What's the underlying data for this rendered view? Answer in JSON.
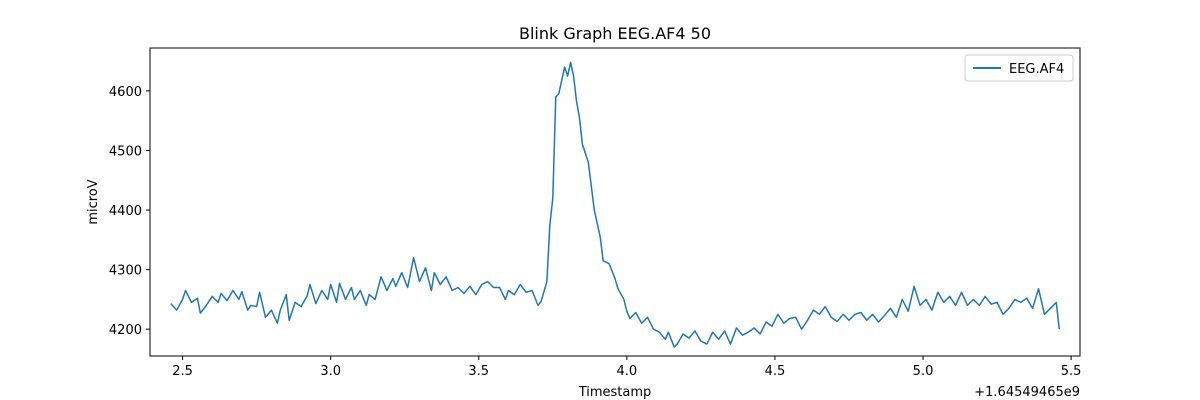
{
  "chart_data": {
    "type": "line",
    "title": "Blink Graph EEG.AF4 50",
    "xlabel": "Timestamp",
    "ylabel": "microV",
    "x_offset_text": "+1.64549465e9",
    "xlim": [
      2.39,
      5.53
    ],
    "ylim": [
      4155,
      4672
    ],
    "xticks": [
      2.5,
      3.0,
      3.5,
      4.0,
      4.5,
      5.0,
      5.5
    ],
    "xtick_labels": [
      "2.5",
      "3.0",
      "3.5",
      "4.0",
      "4.5",
      "5.0",
      "5.5"
    ],
    "yticks": [
      4200,
      4300,
      4400,
      4500,
      4600
    ],
    "ytick_labels": [
      "4200",
      "4300",
      "4400",
      "4500",
      "4600"
    ],
    "legend": {
      "placement": "top-right"
    },
    "grid": false,
    "series": [
      {
        "name": "EEG.AF4",
        "color": "#1f77b4",
        "points": [
          [
            2.46,
            4243
          ],
          [
            2.48,
            4232
          ],
          [
            2.5,
            4250
          ],
          [
            2.51,
            4265
          ],
          [
            2.53,
            4245
          ],
          [
            2.55,
            4252
          ],
          [
            2.56,
            4227
          ],
          [
            2.58,
            4240
          ],
          [
            2.6,
            4255
          ],
          [
            2.62,
            4245
          ],
          [
            2.63,
            4260
          ],
          [
            2.65,
            4248
          ],
          [
            2.67,
            4265
          ],
          [
            2.69,
            4250
          ],
          [
            2.7,
            4263
          ],
          [
            2.72,
            4232
          ],
          [
            2.73,
            4240
          ],
          [
            2.75,
            4238
          ],
          [
            2.76,
            4262
          ],
          [
            2.78,
            4220
          ],
          [
            2.8,
            4232
          ],
          [
            2.82,
            4210
          ],
          [
            2.83,
            4232
          ],
          [
            2.85,
            4258
          ],
          [
            2.86,
            4215
          ],
          [
            2.88,
            4245
          ],
          [
            2.9,
            4238
          ],
          [
            2.92,
            4255
          ],
          [
            2.93,
            4275
          ],
          [
            2.95,
            4243
          ],
          [
            2.97,
            4265
          ],
          [
            2.99,
            4250
          ],
          [
            3.0,
            4275
          ],
          [
            3.02,
            4245
          ],
          [
            3.03,
            4277
          ],
          [
            3.05,
            4250
          ],
          [
            3.07,
            4270
          ],
          [
            3.08,
            4250
          ],
          [
            3.1,
            4265
          ],
          [
            3.12,
            4240
          ],
          [
            3.13,
            4258
          ],
          [
            3.15,
            4250
          ],
          [
            3.17,
            4288
          ],
          [
            3.19,
            4265
          ],
          [
            3.21,
            4285
          ],
          [
            3.22,
            4272
          ],
          [
            3.24,
            4295
          ],
          [
            3.26,
            4270
          ],
          [
            3.28,
            4320
          ],
          [
            3.3,
            4280
          ],
          [
            3.32,
            4303
          ],
          [
            3.34,
            4265
          ],
          [
            3.35,
            4295
          ],
          [
            3.37,
            4275
          ],
          [
            3.39,
            4288
          ],
          [
            3.41,
            4265
          ],
          [
            3.43,
            4270
          ],
          [
            3.45,
            4260
          ],
          [
            3.47,
            4272
          ],
          [
            3.49,
            4258
          ],
          [
            3.51,
            4275
          ],
          [
            3.53,
            4280
          ],
          [
            3.55,
            4270
          ],
          [
            3.57,
            4270
          ],
          [
            3.59,
            4250
          ],
          [
            3.6,
            4265
          ],
          [
            3.62,
            4258
          ],
          [
            3.64,
            4275
          ],
          [
            3.66,
            4262
          ],
          [
            3.68,
            4265
          ],
          [
            3.7,
            4240
          ],
          [
            3.71,
            4246
          ],
          [
            3.73,
            4280
          ],
          [
            3.74,
            4375
          ],
          [
            3.75,
            4420
          ],
          [
            3.76,
            4590
          ],
          [
            3.77,
            4595
          ],
          [
            3.79,
            4640
          ],
          [
            3.8,
            4625
          ],
          [
            3.81,
            4648
          ],
          [
            3.82,
            4625
          ],
          [
            3.83,
            4583
          ],
          [
            3.84,
            4555
          ],
          [
            3.85,
            4510
          ],
          [
            3.87,
            4480
          ],
          [
            3.88,
            4440
          ],
          [
            3.89,
            4400
          ],
          [
            3.91,
            4355
          ],
          [
            3.92,
            4315
          ],
          [
            3.94,
            4310
          ],
          [
            3.96,
            4285
          ],
          [
            3.97,
            4268
          ],
          [
            3.99,
            4250
          ],
          [
            4.0,
            4230
          ],
          [
            4.01,
            4218
          ],
          [
            4.03,
            4228
          ],
          [
            4.05,
            4210
          ],
          [
            4.07,
            4220
          ],
          [
            4.09,
            4200
          ],
          [
            4.11,
            4195
          ],
          [
            4.13,
            4183
          ],
          [
            4.14,
            4195
          ],
          [
            4.16,
            4170
          ],
          [
            4.17,
            4175
          ],
          [
            4.19,
            4192
          ],
          [
            4.21,
            4185
          ],
          [
            4.23,
            4197
          ],
          [
            4.25,
            4180
          ],
          [
            4.27,
            4175
          ],
          [
            4.29,
            4195
          ],
          [
            4.31,
            4183
          ],
          [
            4.33,
            4197
          ],
          [
            4.35,
            4175
          ],
          [
            4.37,
            4202
          ],
          [
            4.39,
            4190
          ],
          [
            4.41,
            4195
          ],
          [
            4.43,
            4202
          ],
          [
            4.45,
            4192
          ],
          [
            4.47,
            4212
          ],
          [
            4.49,
            4205
          ],
          [
            4.51,
            4225
          ],
          [
            4.53,
            4210
          ],
          [
            4.55,
            4218
          ],
          [
            4.57,
            4220
          ],
          [
            4.59,
            4200
          ],
          [
            4.61,
            4215
          ],
          [
            4.63,
            4232
          ],
          [
            4.65,
            4225
          ],
          [
            4.67,
            4238
          ],
          [
            4.69,
            4220
          ],
          [
            4.71,
            4213
          ],
          [
            4.73,
            4225
          ],
          [
            4.75,
            4215
          ],
          [
            4.77,
            4225
          ],
          [
            4.79,
            4228
          ],
          [
            4.81,
            4215
          ],
          [
            4.83,
            4225
          ],
          [
            4.85,
            4212
          ],
          [
            4.87,
            4223
          ],
          [
            4.89,
            4235
          ],
          [
            4.91,
            4220
          ],
          [
            4.93,
            4250
          ],
          [
            4.95,
            4230
          ],
          [
            4.97,
            4272
          ],
          [
            4.99,
            4240
          ],
          [
            5.01,
            4250
          ],
          [
            5.03,
            4232
          ],
          [
            5.05,
            4262
          ],
          [
            5.07,
            4245
          ],
          [
            5.09,
            4255
          ],
          [
            5.11,
            4240
          ],
          [
            5.13,
            4262
          ],
          [
            5.15,
            4240
          ],
          [
            5.17,
            4250
          ],
          [
            5.19,
            4240
          ],
          [
            5.21,
            4255
          ],
          [
            5.23,
            4242
          ],
          [
            5.25,
            4245
          ],
          [
            5.27,
            4225
          ],
          [
            5.29,
            4235
          ],
          [
            5.31,
            4250
          ],
          [
            5.33,
            4245
          ],
          [
            5.35,
            4252
          ],
          [
            5.37,
            4235
          ],
          [
            5.39,
            4268
          ],
          [
            5.41,
            4225
          ],
          [
            5.43,
            4235
          ],
          [
            5.45,
            4245
          ],
          [
            5.46,
            4200
          ]
        ]
      }
    ]
  }
}
